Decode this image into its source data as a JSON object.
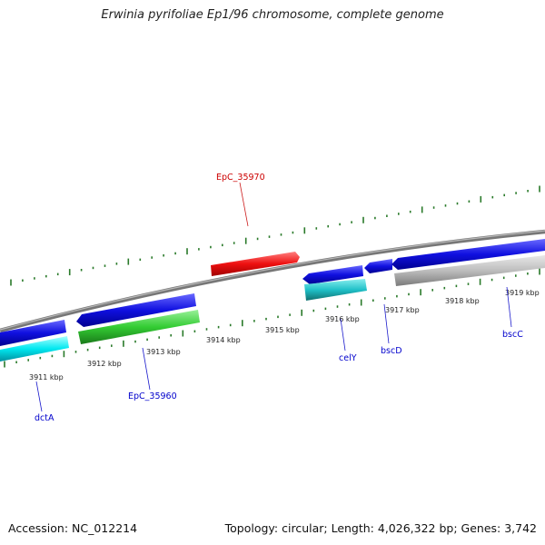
{
  "title": "Erwinia pyrifoliae Ep1/96 chromosome, complete genome",
  "footer": {
    "accession": "Accession: NC_012214",
    "summary": "Topology: circular; Length: 4,026,322 bp; Genes: 3,742"
  },
  "map": {
    "tick_labels": [
      "3911 kbp",
      "3912 kbp",
      "3913 kbp",
      "3914 kbp",
      "3915 kbp",
      "3916 kbp",
      "3917 kbp",
      "3918 kbp",
      "3919 kbp"
    ],
    "gene_labels": [
      {
        "name": "dctA",
        "color": "#0000cc"
      },
      {
        "name": "EpC_35960",
        "color": "#0000cc"
      },
      {
        "name": "EpC_35970",
        "color": "#cc0000"
      },
      {
        "name": "celY",
        "color": "#0000cc"
      },
      {
        "name": "bscD",
        "color": "#0000cc"
      },
      {
        "name": "bscC",
        "color": "#0000cc"
      }
    ],
    "colors": {
      "backbone": "#808080",
      "forward_gene": "#1010e0",
      "reverse_gene": "#e81010",
      "forward_cds_cyan": "#00d8e0",
      "forward_cds_green": "#33cc33",
      "teal_cds": "#20c0c8",
      "grey_cds": "#bdbdbd",
      "tick": "#2a7a2a"
    }
  }
}
